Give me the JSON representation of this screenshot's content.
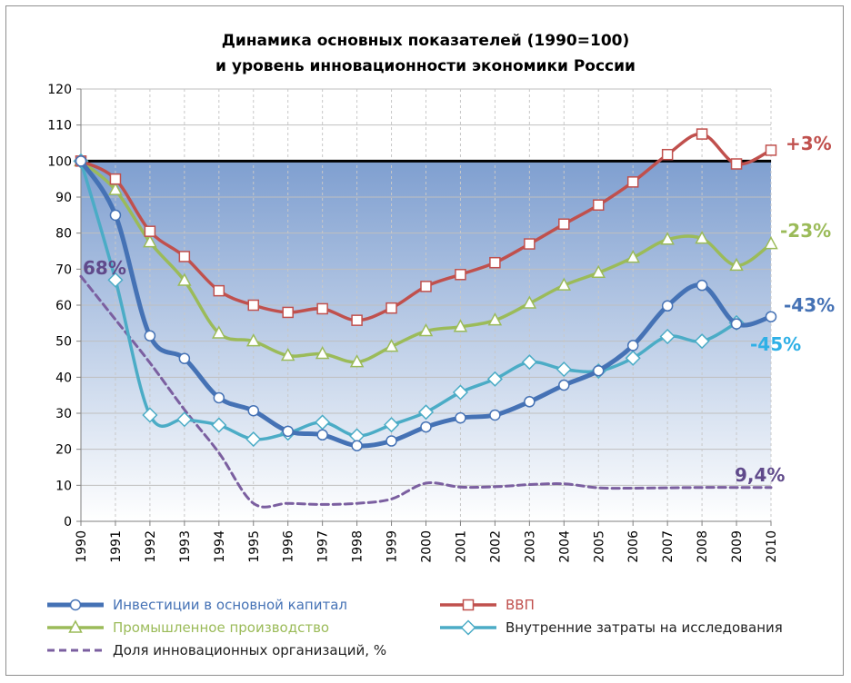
{
  "chart_data": {
    "type": "line",
    "title": [
      "Динамика основных показателей (1990=100)",
      "и уровень инновационности экономики России"
    ],
    "xlabel": "",
    "ylabel": "",
    "ylim": [
      0,
      120
    ],
    "yticks": [
      0,
      10,
      20,
      30,
      40,
      50,
      60,
      70,
      80,
      90,
      100,
      110,
      120
    ],
    "x": [
      "1990",
      "1991",
      "1992",
      "1993",
      "1994",
      "1995",
      "1996",
      "1997",
      "1998",
      "1999",
      "2000",
      "2001",
      "2002",
      "2003",
      "2004",
      "2005",
      "2006",
      "2007",
      "2008",
      "2009",
      "2010"
    ],
    "reference_line": 100,
    "grid": true,
    "legend_position": "bottom",
    "series": [
      {
        "name": "Инвестиции в основной капитал",
        "color": "#4572b5",
        "marker": "circle",
        "dashed": false,
        "values": [
          100,
          85,
          51.5,
          45.2,
          34.3,
          30.7,
          25,
          24,
          21,
          22.3,
          26.2,
          28.7,
          29.5,
          33.2,
          37.8,
          41.8,
          48.8,
          59.8,
          65.5,
          54.8,
          56.8
        ]
      },
      {
        "name": "ВВП",
        "color": "#c0504d",
        "marker": "square",
        "dashed": false,
        "values": [
          100,
          95,
          80.5,
          73.5,
          64,
          60,
          58,
          59,
          55.8,
          59.2,
          65.2,
          68.5,
          71.8,
          77,
          82.5,
          87.8,
          94.2,
          101.8,
          107.5,
          99.2,
          103
        ]
      },
      {
        "name": "Промышленное производство",
        "color": "#9bbb59",
        "marker": "triangle",
        "dashed": false,
        "values": [
          100,
          92,
          77.5,
          66.8,
          52.2,
          50,
          46,
          46.5,
          44.2,
          48.5,
          52.8,
          54,
          55.8,
          60.5,
          65.5,
          69,
          73.2,
          78.2,
          78.5,
          71,
          77
        ]
      },
      {
        "name": "Внутренние затраты на исследования",
        "color": "#4bacc6",
        "marker": "diamond",
        "dashed": false,
        "values": [
          100,
          67,
          29.5,
          28.3,
          26.7,
          22.8,
          24.5,
          27.5,
          23.7,
          26.8,
          30.3,
          35.8,
          39.5,
          44.2,
          42.2,
          41.7,
          45.3,
          51.3,
          50,
          55.1,
          null
        ]
      },
      {
        "name": "Доля инновационных организаций, %",
        "color": "#7b5fa0",
        "marker": "none",
        "dashed": true,
        "values": [
          68,
          56,
          44,
          31,
          19,
          5,
          5,
          4.7,
          5,
          6.2,
          10.6,
          9.5,
          9.6,
          10.2,
          10.4,
          9.3,
          9.2,
          9.3,
          9.4,
          9.4,
          9.4
        ]
      }
    ],
    "annotations": [
      {
        "text": "+3%",
        "color": "#c0504d"
      },
      {
        "text": "-23%",
        "color": "#9bbb59"
      },
      {
        "text": "-43%",
        "color": "#4572b5"
      },
      {
        "text": "-45%",
        "color": "#2fb0e6"
      },
      {
        "text": "68%",
        "color": "#604a8b"
      },
      {
        "text": "9,4%",
        "color": "#604a8b"
      }
    ]
  }
}
